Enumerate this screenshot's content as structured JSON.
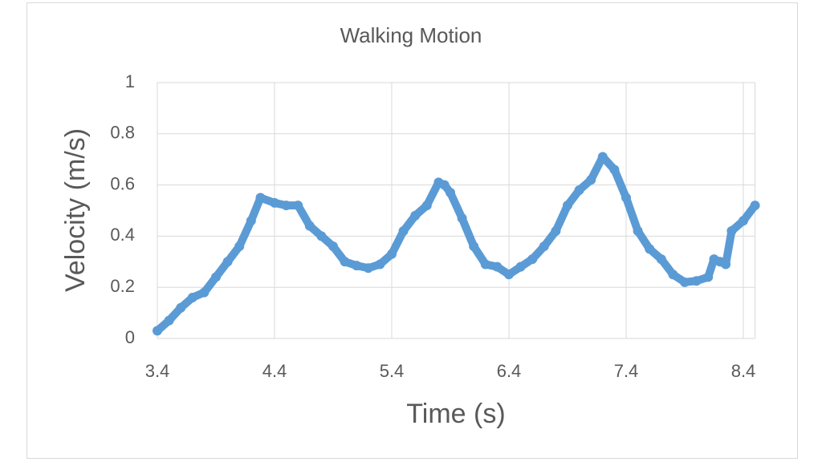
{
  "chart_data": {
    "type": "line",
    "title": "Walking Motion",
    "x_label": "Time (s)",
    "y_label": "Velocity (m/s)",
    "series": [
      {
        "name": "Velocity",
        "color": "#5b9bd5",
        "x": [
          3.4,
          3.5,
          3.6,
          3.7,
          3.8,
          3.9,
          4.0,
          4.1,
          4.2,
          4.28,
          4.4,
          4.5,
          4.6,
          4.7,
          4.8,
          4.9,
          5.0,
          5.1,
          5.2,
          5.3,
          5.4,
          5.5,
          5.6,
          5.7,
          5.8,
          5.85,
          5.9,
          6.0,
          6.1,
          6.2,
          6.3,
          6.4,
          6.5,
          6.6,
          6.7,
          6.8,
          6.9,
          7.0,
          7.1,
          7.2,
          7.3,
          7.4,
          7.5,
          7.6,
          7.7,
          7.8,
          7.9,
          8.0,
          8.1,
          8.15,
          8.2,
          8.25,
          8.3,
          8.4,
          8.5
        ],
        "values": [
          0.03,
          0.07,
          0.12,
          0.16,
          0.18,
          0.24,
          0.3,
          0.36,
          0.46,
          0.55,
          0.53,
          0.52,
          0.52,
          0.44,
          0.4,
          0.36,
          0.3,
          0.285,
          0.275,
          0.29,
          0.33,
          0.42,
          0.48,
          0.52,
          0.61,
          0.6,
          0.57,
          0.47,
          0.36,
          0.29,
          0.28,
          0.25,
          0.28,
          0.31,
          0.36,
          0.42,
          0.52,
          0.58,
          0.62,
          0.71,
          0.66,
          0.55,
          0.42,
          0.35,
          0.31,
          0.25,
          0.22,
          0.225,
          0.24,
          0.31,
          0.3,
          0.29,
          0.42,
          0.46,
          0.52
        ]
      }
    ],
    "xlim": [
      3.4,
      8.5
    ],
    "xticks": [
      3.4,
      4.4,
      5.4,
      6.4,
      7.4,
      8.4
    ],
    "ylim": [
      0,
      1
    ],
    "yticks": [
      0,
      0.2,
      0.4,
      0.6,
      0.8,
      1
    ],
    "grid": true
  }
}
